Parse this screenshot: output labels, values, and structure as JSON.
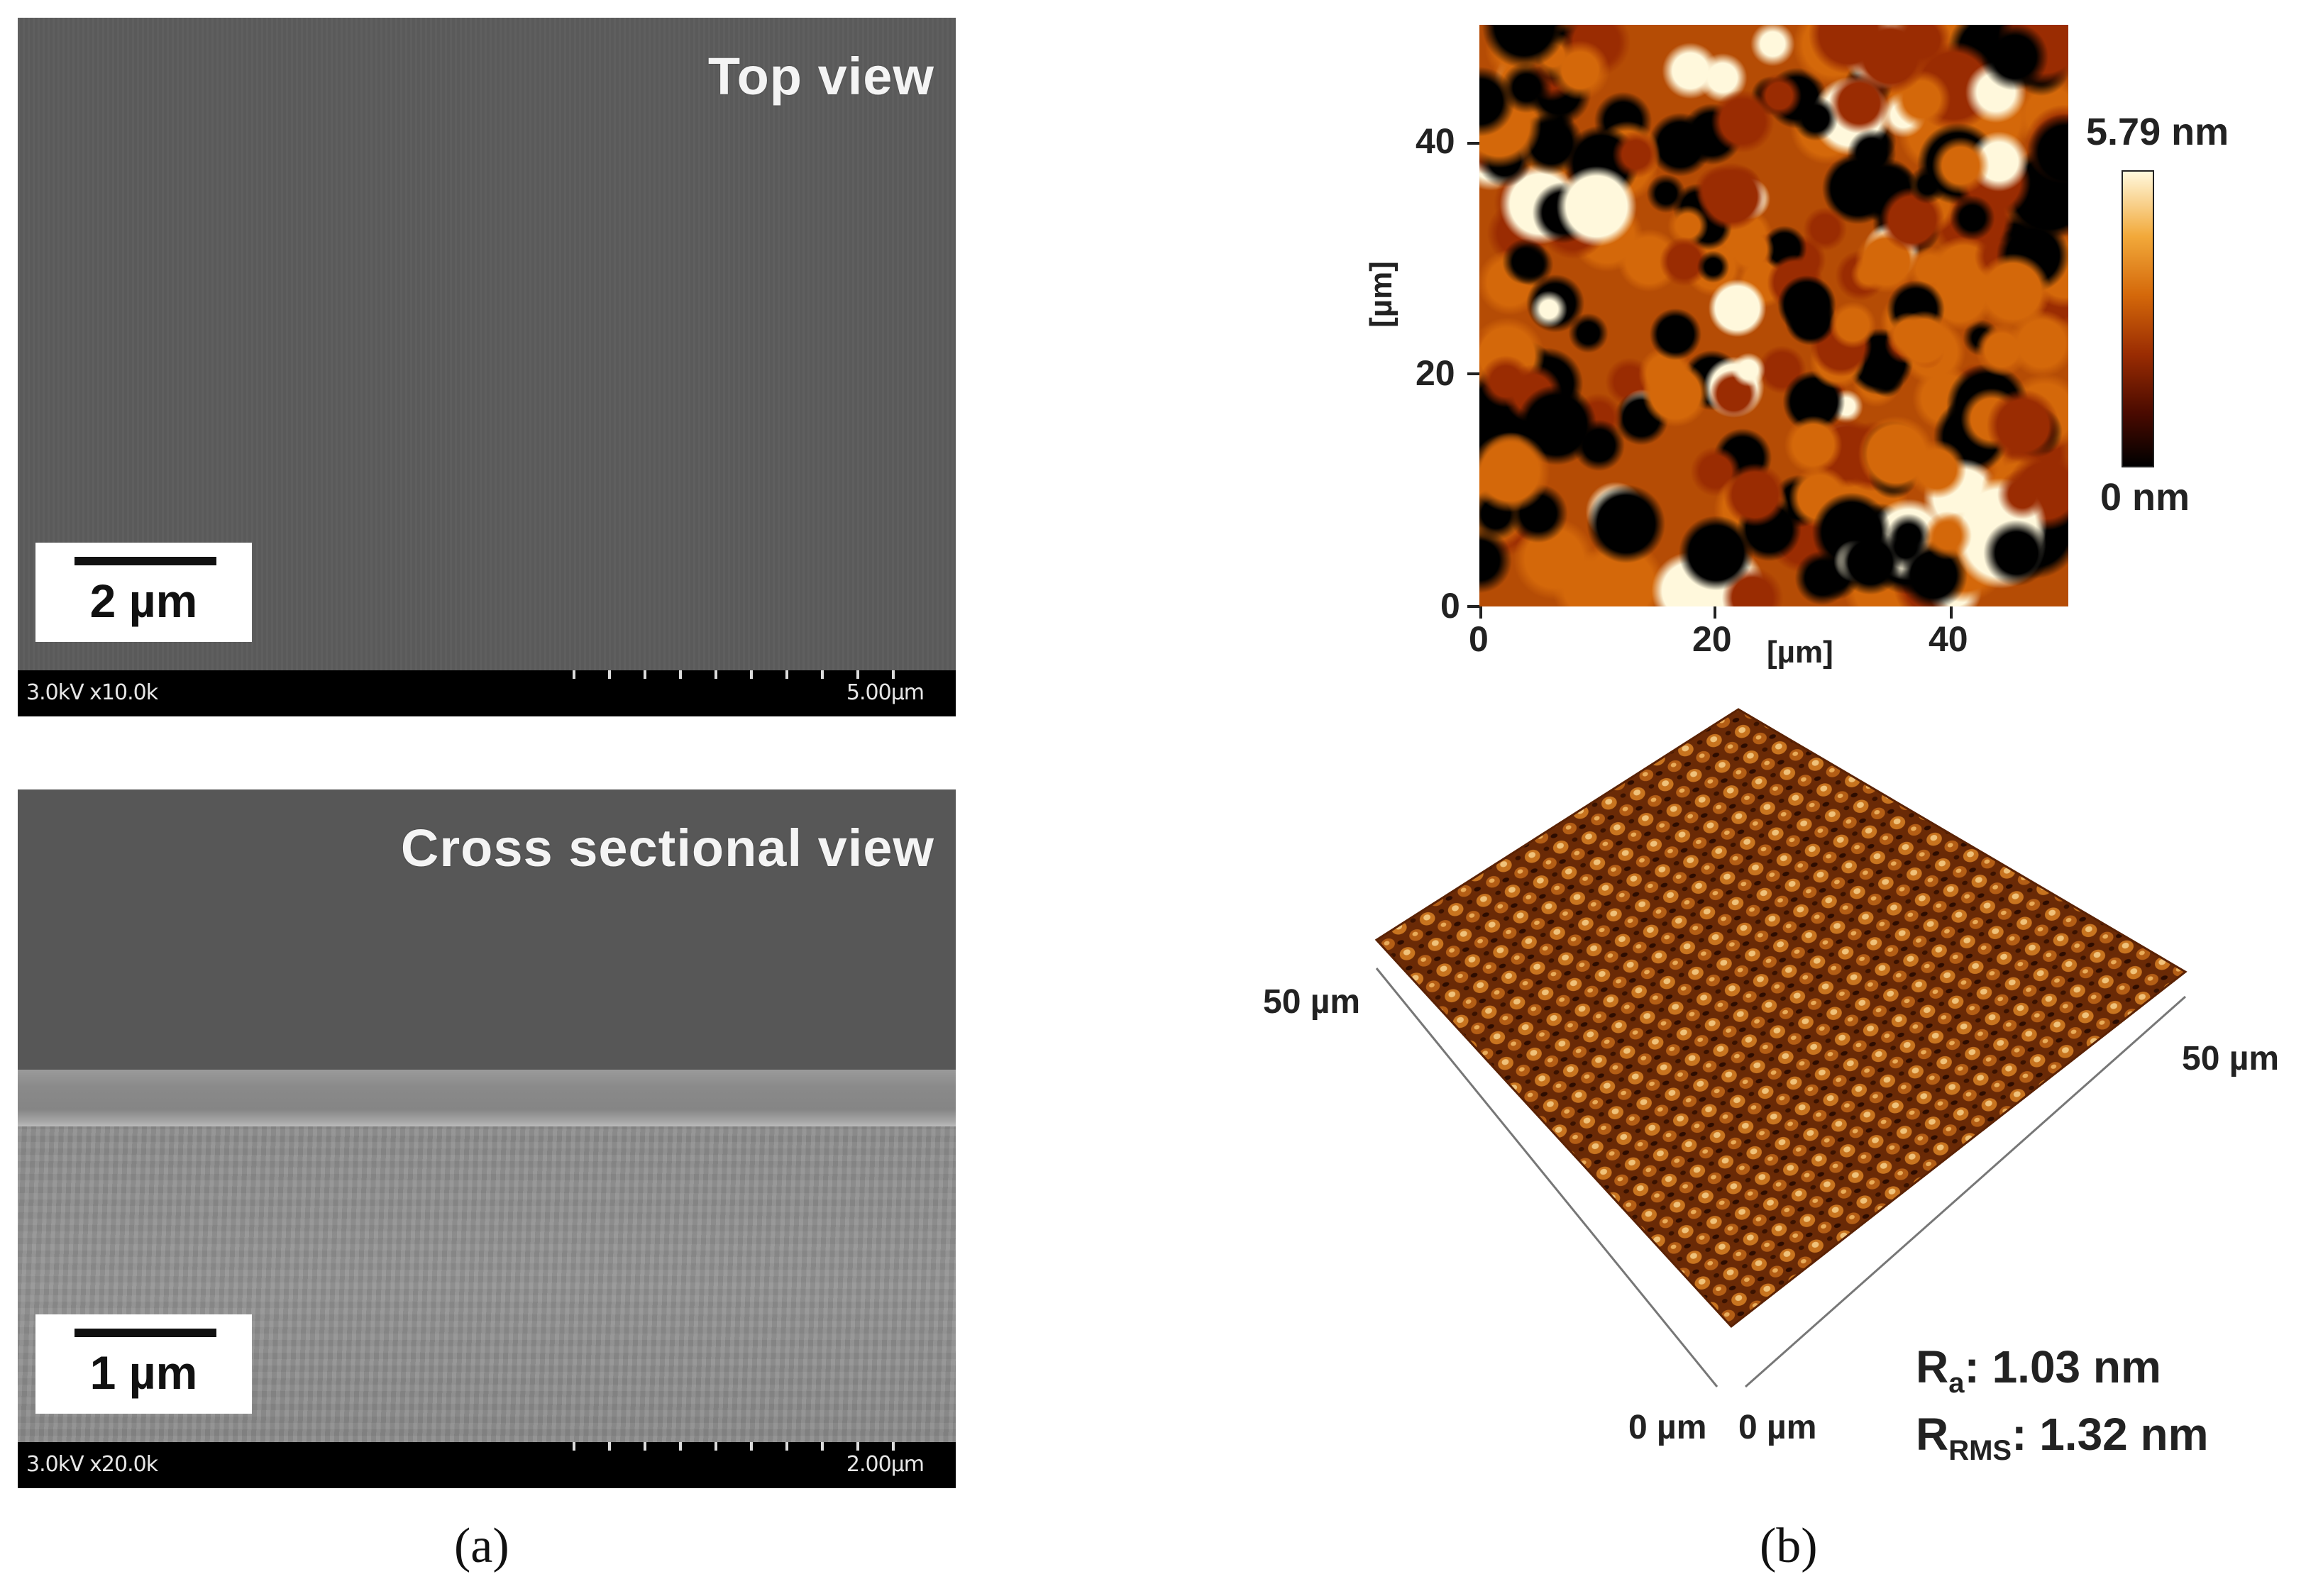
{
  "panel_a": {
    "label": "(a)",
    "top_sem": {
      "title": "Top view",
      "scale_label": "2 µm",
      "info_left": "3.0kV x10.0k",
      "info_right": "5.00µm"
    },
    "cross_sem": {
      "title": "Cross sectional view",
      "scale_label": "1 µm",
      "info_left": "3.0kV x20.0k",
      "info_right": "2.00µm"
    }
  },
  "panel_b": {
    "label": "(b)",
    "afm_2d": {
      "x_axis_label": "[µm]",
      "y_axis_label": "[µm]",
      "x_ticks": [
        "0",
        "20",
        "40"
      ],
      "y_ticks": [
        "0",
        "20",
        "40"
      ],
      "colorbar_max": "5.79 nm",
      "colorbar_min": "0 nm",
      "colormap": [
        "#000000",
        "#9a2c02",
        "#d4680a",
        "#fff8dc"
      ]
    },
    "afm_3d": {
      "left_axis_end": "50 µm",
      "right_axis_end": "50 µm",
      "left_axis_origin": "0 µm",
      "right_axis_origin": "0 µm"
    },
    "roughness": {
      "ra_symbol": "R",
      "ra_sub": "a",
      "ra_value": ": 1.03 nm",
      "rrms_symbol": "R",
      "rrms_sub": "RMS",
      "rrms_value": ": 1.32 nm"
    }
  }
}
